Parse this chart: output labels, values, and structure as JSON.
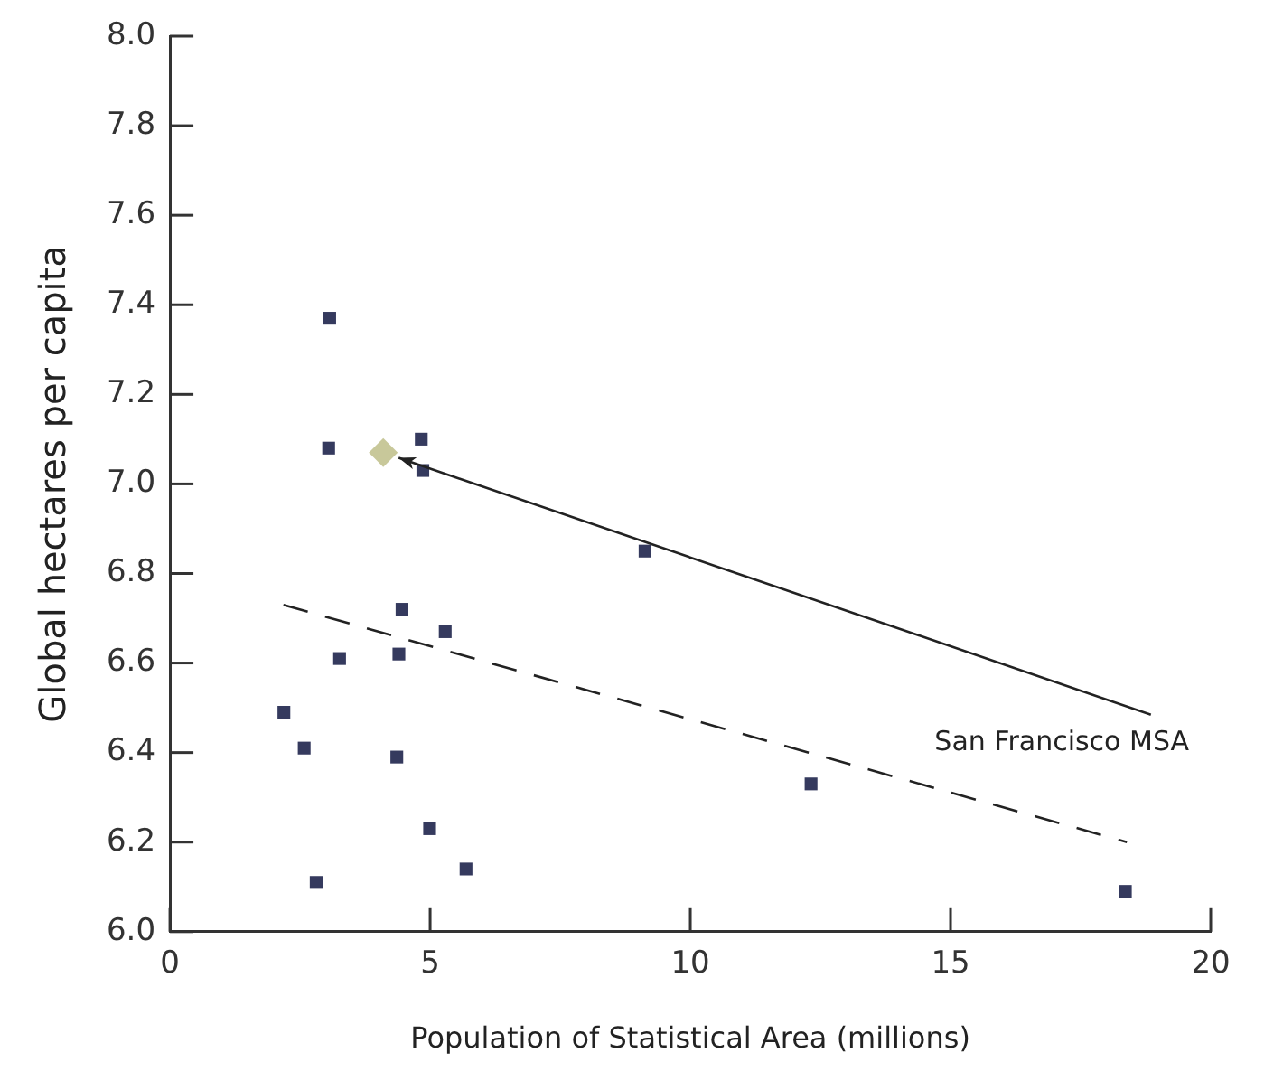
{
  "chart_data": {
    "type": "scatter",
    "xlabel": "Population of Statistical Area (millions)",
    "ylabel": "Global hectares per capita",
    "xlim": [
      0,
      20
    ],
    "xticks": [
      0,
      5,
      10,
      15,
      20
    ],
    "ylim": [
      6.0,
      8.0
    ],
    "yticks": [
      {
        "value": 6,
        "label": "6.0"
      },
      {
        "value": 6.2,
        "label": "6.2"
      },
      {
        "value": 6.4,
        "label": "6.4"
      },
      {
        "value": 6.6,
        "label": "6.6"
      },
      {
        "value": 6.8,
        "label": "6.8"
      },
      {
        "value": 7,
        "label": "7.0"
      },
      {
        "value": 7.2,
        "label": "7.2"
      },
      {
        "value": 7.4,
        "label": "7.4"
      },
      {
        "value": 7.6,
        "label": "7.6"
      },
      {
        "value": 7.8,
        "label": "7.8"
      },
      {
        "value": 8,
        "label": "8.0"
      }
    ],
    "grid": false,
    "legend": false,
    "series": [
      {
        "type": "scatter",
        "marker": "square",
        "color": "#353a5e",
        "x": [
          4.46,
          5.29,
          3.26,
          4.4,
          2.19,
          2.58,
          4.36,
          4.99,
          5.69,
          2.81,
          3.07,
          3.05,
          4.83,
          4.86,
          9.13,
          12.32,
          18.36
        ],
        "values": [
          6.72,
          6.67,
          6.61,
          6.62,
          6.49,
          6.41,
          6.39,
          6.23,
          6.14,
          6.11,
          7.37,
          7.08,
          7.1,
          7.03,
          6.85,
          6.33,
          6.09
        ]
      },
      {
        "type": "scatter",
        "marker": "diamond",
        "color": "#c8c89a",
        "x": [
          4.1
        ],
        "values": [
          7.07
        ]
      },
      {
        "type": "line",
        "marker": "none",
        "line_style": "dashed",
        "color": "#222222",
        "x": [
          2.18,
          18.39
        ],
        "values": [
          6.73,
          6.2
        ]
      }
    ],
    "annotations": [
      "San Francisco MSA"
    ]
  }
}
